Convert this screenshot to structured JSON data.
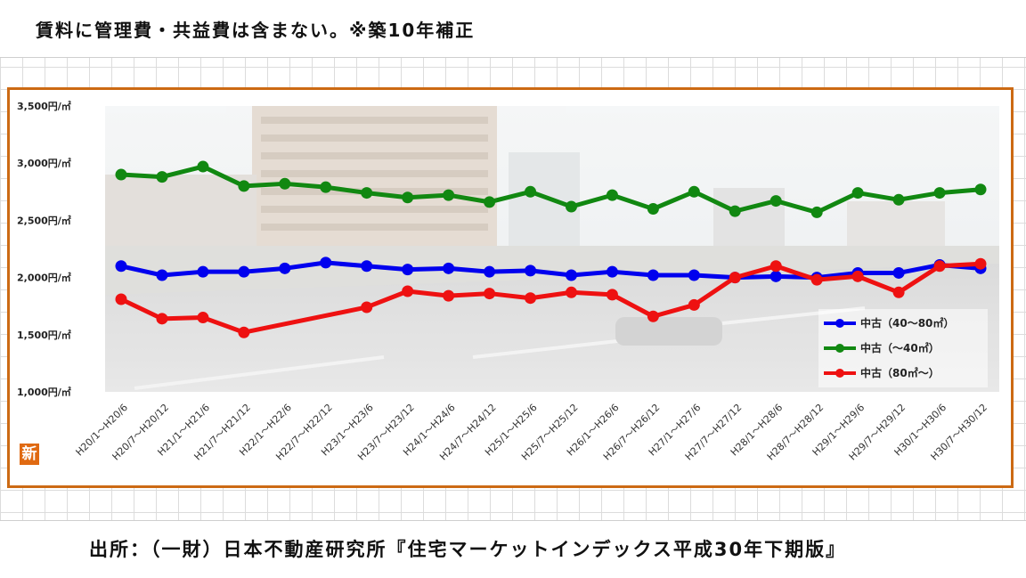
{
  "header": {
    "title": "賃料に管理費・共益費は含まない。※築10年補正"
  },
  "footer": {
    "source": "出所：（一財）日本不動産研究所『住宅マーケットインデックス平成30年下期版』"
  },
  "badge": {
    "label": "新"
  },
  "colors": {
    "frame": "#cc6a14",
    "blue": "#0000ee",
    "green": "#118811",
    "red": "#ee1111"
  },
  "chart_data": {
    "type": "line",
    "ylim": [
      1000,
      3500
    ],
    "yticks": [
      {
        "value": 3500,
        "label": "3,500円/㎡"
      },
      {
        "value": 3000,
        "label": "3,000円/㎡"
      },
      {
        "value": 2500,
        "label": "2,500円/㎡"
      },
      {
        "value": 2000,
        "label": "2,000円/㎡"
      },
      {
        "value": 1500,
        "label": "1,500円/㎡"
      },
      {
        "value": 1000,
        "label": "1,000円/㎡"
      }
    ],
    "categories": [
      "H20/1～H20/6",
      "H20/7～H20/12",
      "H21/1～H21/6",
      "H21/7～H21/12",
      "H22/1～H22/6",
      "H22/7～H22/12",
      "H23/1～H23/6",
      "H23/7～H23/12",
      "H24/1～H24/6",
      "H24/7～H24/12",
      "H25/1～H25/6",
      "H25/7～H25/12",
      "H26/1～H26/6",
      "H26/7～H26/12",
      "H27/1～H27/6",
      "H27/7～H27/12",
      "H28/1～H28/6",
      "H28/7～H28/12",
      "H29/1～H29/6",
      "H29/7～H29/12",
      "H30/1～H30/6",
      "H30/7～H30/12"
    ],
    "legend_position": "bottom-right",
    "series": [
      {
        "name": "中古（40～80㎡）",
        "color": "#0000ee",
        "values": [
          2100,
          2020,
          2050,
          2050,
          2080,
          2130,
          2100,
          2070,
          2080,
          2050,
          2060,
          2020,
          2050,
          2020,
          2020,
          2000,
          2010,
          2000,
          2040,
          2040,
          2110,
          2080
        ]
      },
      {
        "name": "中古（～40㎡）",
        "color": "#118811",
        "values": [
          2900,
          2880,
          2970,
          2800,
          2820,
          2790,
          2740,
          2700,
          2720,
          2660,
          2750,
          2620,
          2720,
          2600,
          2750,
          2580,
          2670,
          2570,
          2740,
          2680,
          2740,
          2770
        ]
      },
      {
        "name": "中古（80㎡～）",
        "color": "#ee1111",
        "values": [
          1810,
          1640,
          1650,
          1520,
          null,
          null,
          1740,
          1880,
          1840,
          1860,
          1820,
          1870,
          1850,
          1660,
          1760,
          2000,
          2100,
          1980,
          2010,
          1870,
          2100,
          2120
        ]
      }
    ]
  }
}
